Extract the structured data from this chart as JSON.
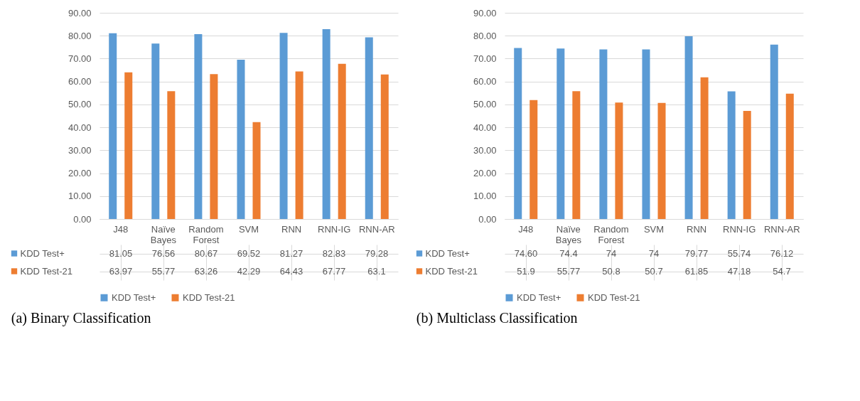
{
  "chart_data": [
    {
      "type": "bar",
      "title": "(a)   Binary Classification",
      "categories": [
        "J48",
        "Naïve Bayes",
        "Random Forest",
        "SVM",
        "RNN",
        "RNN-IG",
        "RNN-AR"
      ],
      "series": [
        {
          "name": "KDD Test+",
          "color": "#5b9bd5",
          "values": [
            81.05,
            76.56,
            80.67,
            69.52,
            81.27,
            82.83,
            79.28
          ],
          "value_labels": [
            "81.05",
            "76.56",
            "80.67",
            "69.52",
            "81.27",
            "82.83",
            "79.28"
          ]
        },
        {
          "name": "KDD Test-21",
          "color": "#ed7d31",
          "values": [
            63.97,
            55.77,
            63.26,
            42.29,
            64.43,
            67.77,
            63.1
          ],
          "value_labels": [
            "63.97",
            "55.77",
            "63.26",
            "42.29",
            "64.43",
            "67.77",
            "63.1"
          ]
        }
      ],
      "ylim": [
        0,
        90
      ],
      "yticks": [
        {
          "value": 0,
          "label": "0.00"
        },
        {
          "value": 10,
          "label": "10.00"
        },
        {
          "value": 20,
          "label": "20.00"
        },
        {
          "value": 30,
          "label": "30.00"
        },
        {
          "value": 40,
          "label": "40.00"
        },
        {
          "value": 50,
          "label": "50.00"
        },
        {
          "value": 60,
          "label": "60.00"
        },
        {
          "value": 70,
          "label": "70.00"
        },
        {
          "value": 80,
          "label": "80.00"
        },
        {
          "value": 90,
          "label": "90.00"
        }
      ],
      "grid": "y",
      "legend": "bottom"
    },
    {
      "type": "bar",
      "title": "(b) Multiclass Classification",
      "categories": [
        "J48",
        "Naïve Bayes",
        "Random Forest",
        "SVM",
        "RNN",
        "RNN-IG",
        "RNN-AR"
      ],
      "series": [
        {
          "name": "KDD Test+",
          "color": "#5b9bd5",
          "values": [
            74.6,
            74.4,
            74,
            74,
            79.77,
            55.74,
            76.12
          ],
          "value_labels": [
            "74.60",
            "74.4",
            "74",
            "74",
            "79.77",
            "55.74",
            "76.12"
          ]
        },
        {
          "name": "KDD Test-21",
          "color": "#ed7d31",
          "values": [
            51.9,
            55.77,
            50.8,
            50.7,
            61.85,
            47.18,
            54.7
          ],
          "value_labels": [
            "51.9",
            "55.77",
            "50.8",
            "50.7",
            "61.85",
            "47.18",
            "54.7"
          ]
        }
      ],
      "ylim": [
        0,
        90
      ],
      "yticks": [
        {
          "value": 0,
          "label": "0.00"
        },
        {
          "value": 10,
          "label": "10.00"
        },
        {
          "value": 20,
          "label": "20.00"
        },
        {
          "value": 30,
          "label": "30.00"
        },
        {
          "value": 40,
          "label": "40.00"
        },
        {
          "value": 50,
          "label": "50.00"
        },
        {
          "value": 60,
          "label": "60.00"
        },
        {
          "value": 70,
          "label": "70.00"
        },
        {
          "value": 80,
          "label": "80.00"
        },
        {
          "value": 90,
          "label": "90.00"
        }
      ],
      "grid": "y",
      "legend": "bottom"
    }
  ]
}
